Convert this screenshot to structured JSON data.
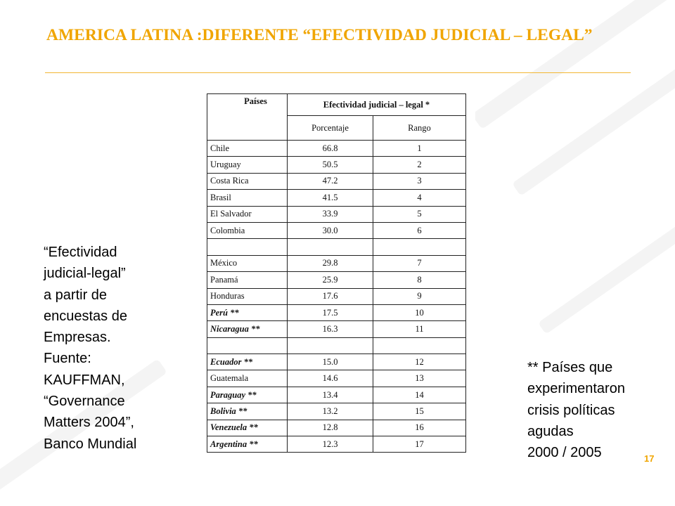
{
  "slide": {
    "title": "AMERICA LATINA :DIFERENTE “EFECTIVIDAD JUDICIAL – LEGAL”",
    "accent_color": "#f0a500",
    "page_number": "17"
  },
  "left_note": "“Efectividad\njudicial-legal”\na partir de\nencuestas de\nEmpresas.\nFuente:\nKAUFFMAN,\n“Governance\nMatters 2004”,\nBanco Mundial",
  "right_note": "** Países que\nexperimentaron\ncrisis políticas\nagudas\n2000 / 2005",
  "table": {
    "header_country": "Países",
    "header_group": "Efectividad judicial – legal *",
    "header_percentage": "Porcentaje",
    "header_rank": "Rango",
    "groups": [
      [
        {
          "country": "Chile",
          "percentage": "66.8",
          "rank": "1"
        },
        {
          "country": "Uruguay",
          "percentage": "50.5",
          "rank": "2"
        },
        {
          "country": "Costa Rica",
          "percentage": "47.2",
          "rank": "3"
        },
        {
          "country": "Brasil",
          "percentage": "41.5",
          "rank": "4"
        },
        {
          "country": "El Salvador",
          "percentage": "33.9",
          "rank": "5"
        },
        {
          "country": "Colombia",
          "percentage": "30.0",
          "rank": "6"
        }
      ],
      [
        {
          "country": "México",
          "percentage": "29.8",
          "rank": "7"
        },
        {
          "country": "Panamá",
          "percentage": "25.9",
          "rank": "8"
        },
        {
          "country": "Honduras",
          "percentage": "17.6",
          "rank": "9"
        },
        {
          "country": "Perú **",
          "percentage": "17.5",
          "rank": "10"
        },
        {
          "country": "Nicaragua **",
          "percentage": "16.3",
          "rank": "11"
        }
      ],
      [
        {
          "country": "Ecuador **",
          "percentage": "15.0",
          "rank": "12"
        },
        {
          "country": "Guatemala",
          "percentage": "14.6",
          "rank": "13"
        },
        {
          "country": "Paraguay **",
          "percentage": "13.4",
          "rank": "14"
        },
        {
          "country": "Bolivia **",
          "percentage": "13.2",
          "rank": "15"
        },
        {
          "country": "Venezuela **",
          "percentage": "12.8",
          "rank": "16"
        },
        {
          "country": "Argentina **",
          "percentage": "12.3",
          "rank": "17"
        }
      ]
    ]
  }
}
